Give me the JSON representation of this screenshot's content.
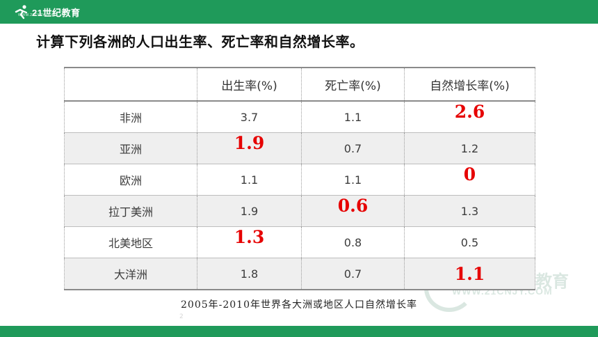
{
  "header": {
    "logo_text": "21世纪教育",
    "logo_sub": "WWW.21CNJY.COM"
  },
  "title": "计算下列各洲的人口出生率、死亡率和自然增长率。",
  "table": {
    "headers": [
      "",
      "出生率(%)",
      "死亡率(%)",
      "自然增长率(%)"
    ],
    "rows": [
      {
        "region": "非洲",
        "birth": "3.7",
        "death": "1.1",
        "growth": "2.6",
        "answer_col": "growth"
      },
      {
        "region": "亚洲",
        "birth": "1.9",
        "death": "0.7",
        "growth": "1.2",
        "answer_col": "birth"
      },
      {
        "region": "欧洲",
        "birth": "1.1",
        "death": "1.1",
        "growth": "0",
        "answer_col": "growth"
      },
      {
        "region": "拉丁美洲",
        "birth": "1.9",
        "death": "0.6",
        "growth": "1.3",
        "answer_col": "death"
      },
      {
        "region": "北美地区",
        "birth": "1.3",
        "death": "0.8",
        "growth": "0.5",
        "answer_col": "birth"
      },
      {
        "region": "大洋洲",
        "birth": "1.8",
        "death": "0.7",
        "growth": "1.1",
        "answer_col": "growth"
      }
    ]
  },
  "caption": "2005年-2010年世界各大洲或地区人口自然增长率",
  "page_number": "2",
  "watermark": {
    "big": "教育",
    "small": "WWW.21CNJY.COM"
  },
  "colors": {
    "brand_green": "#1f9a5a",
    "answer_red": "#e60000",
    "shade": "#efefef"
  }
}
